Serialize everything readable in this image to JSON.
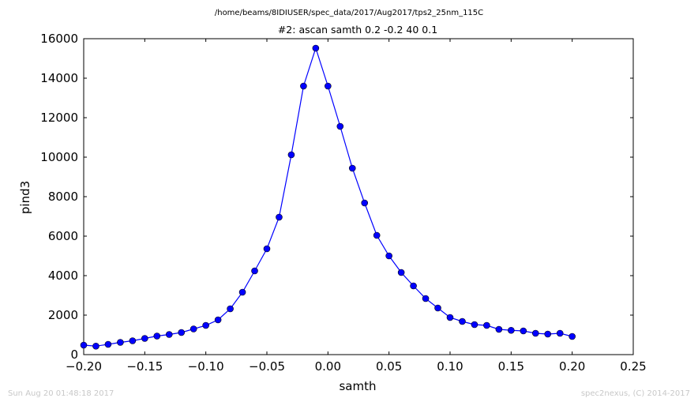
{
  "chart_data": {
    "type": "line",
    "suptitle": "/home/beams/8IDIUSER/spec_data/2017/Aug2017/tps2_25nm_115C",
    "title": "#2: ascan  samth 0.2 -0.2  40 0.1",
    "xlabel": "samth",
    "ylabel": "pind3",
    "xlim": [
      -0.2,
      0.25
    ],
    "ylim": [
      0,
      16000
    ],
    "xticks": [
      -0.2,
      -0.15,
      -0.1,
      -0.05,
      0.0,
      0.05,
      0.1,
      0.15,
      0.2,
      0.25
    ],
    "xtick_labels": [
      "−0.20",
      "−0.15",
      "−0.10",
      "−0.05",
      "0.00",
      "0.05",
      "0.10",
      "0.15",
      "0.20",
      "0.25"
    ],
    "yticks": [
      0,
      2000,
      4000,
      6000,
      8000,
      10000,
      12000,
      14000,
      16000
    ],
    "ytick_labels": [
      "0",
      "2000",
      "4000",
      "6000",
      "8000",
      "10000",
      "12000",
      "14000",
      "16000"
    ],
    "grid": false,
    "series": [
      {
        "color": "#0000ff",
        "marker": "circle",
        "x": [
          -0.2,
          -0.19,
          -0.18,
          -0.17,
          -0.16,
          -0.15,
          -0.14,
          -0.13,
          -0.12,
          -0.11,
          -0.1,
          -0.09,
          -0.08,
          -0.07,
          -0.06,
          -0.05,
          -0.04,
          -0.03,
          -0.02,
          -0.01,
          0.0,
          0.01,
          0.02,
          0.03,
          0.04,
          0.05,
          0.06,
          0.07,
          0.08,
          0.09,
          0.1,
          0.11,
          0.12,
          0.13,
          0.14,
          0.15,
          0.16,
          0.17,
          0.18,
          0.19,
          0.2
        ],
        "y": [
          480,
          430,
          520,
          620,
          700,
          820,
          940,
          1020,
          1120,
          1300,
          1480,
          1760,
          2320,
          3160,
          4240,
          5360,
          6960,
          10120,
          13600,
          15520,
          13600,
          11560,
          9440,
          7680,
          6040,
          5000,
          4160,
          3480,
          2840,
          2360,
          1880,
          1680,
          1520,
          1480,
          1280,
          1230,
          1200,
          1080,
          1040,
          1080,
          920
        ]
      }
    ]
  },
  "footer": {
    "timestamp": "Sun Aug 20 01:48:18 2017",
    "credit": "spec2nexus, (C) 2014-2017"
  }
}
